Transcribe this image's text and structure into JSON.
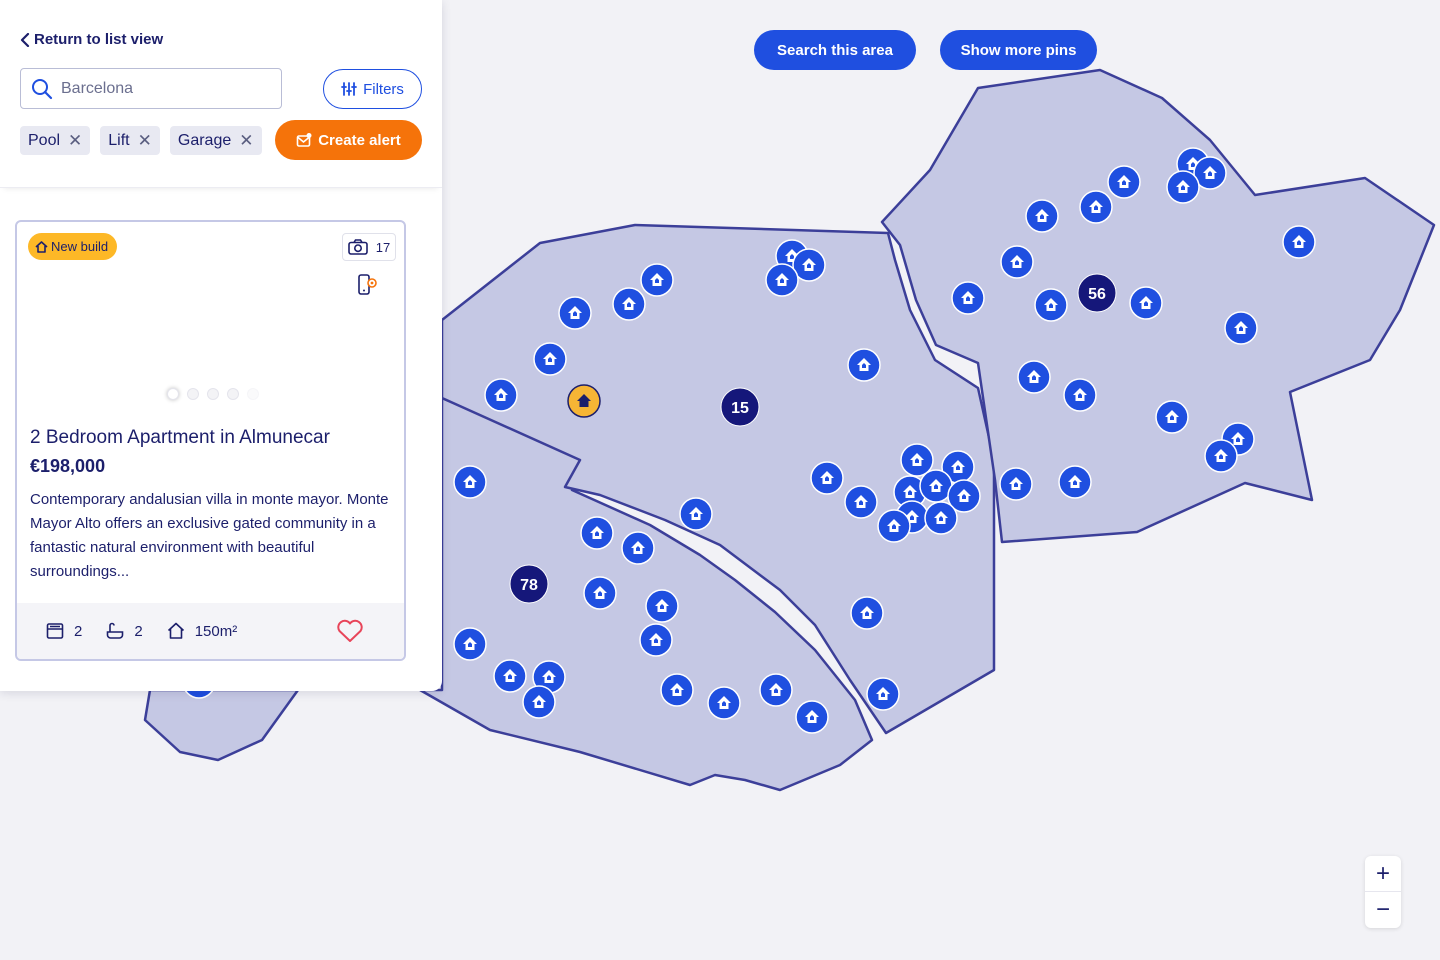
{
  "map": {
    "search_area_label": "Search this area",
    "show_more_label": "Show more pins",
    "zoom_in": "+",
    "zoom_out": "−",
    "clusters": [
      {
        "count": "78"
      },
      {
        "count": "15"
      },
      {
        "count": "56"
      }
    ],
    "colors": {
      "region_fill": "#c5c8e4",
      "region_stroke": "#3c3f99",
      "pin": "#1f4fe0",
      "cluster": "#15177a",
      "selected_pin": "#f6b535"
    }
  },
  "panel": {
    "back_label": "Return to list view",
    "search": {
      "placeholder": "Barcelona"
    },
    "filters_label": "Filters",
    "chips": [
      {
        "label": "Pool"
      },
      {
        "label": "Lift"
      },
      {
        "label": "Garage"
      }
    ],
    "create_alert_label": "Create alert"
  },
  "listing": {
    "badge": "New build",
    "photo_count": "17",
    "title": "2 Bedroom Apartment in Almunecar",
    "price": "€198,000",
    "description": "Contemporary andalusian villa in monte mayor. Monte Mayor Alto offers an exclusive gated community in a fantastic natural environment with beautiful surroundings...",
    "bedrooms": "2",
    "bathrooms": "2",
    "area": "150m²",
    "favorite_icon": "heart-icon",
    "carousel": {
      "images": 5,
      "active_index": 0
    }
  }
}
